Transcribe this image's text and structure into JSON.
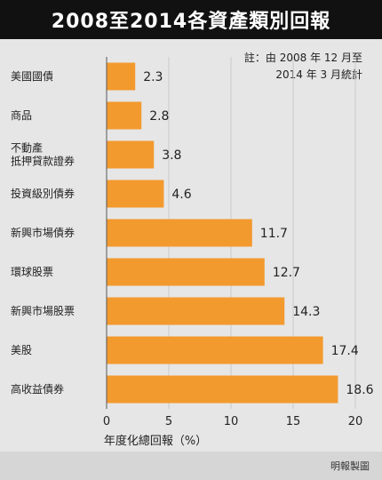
{
  "header": {
    "title": "2008至2014各資產類別回報"
  },
  "note": {
    "line1": "註：由 2008 年 12 月至",
    "line2": "2014 年 3 月統計"
  },
  "footer": {
    "credit": "明報製圖"
  },
  "colors": {
    "bar": "#f39a2e",
    "background": "#e6e6e6",
    "title_bar": "#111111"
  },
  "chart_data": {
    "type": "bar",
    "orientation": "horizontal",
    "categories": [
      [
        "美國國債"
      ],
      [
        "商品"
      ],
      [
        "不動產",
        "抵押貸款證券"
      ],
      [
        "投資級別債券"
      ],
      [
        "新興市場債券"
      ],
      [
        "環球股票"
      ],
      [
        "新興市場股票"
      ],
      [
        "美股"
      ],
      [
        "高收益債券"
      ]
    ],
    "values": [
      2.3,
      2.8,
      3.8,
      4.6,
      11.7,
      12.7,
      14.3,
      17.4,
      18.6
    ],
    "value_labels": [
      "2.3",
      "2.8",
      "3.8",
      "4.6",
      "11.7",
      "12.7",
      "14.3",
      "17.4",
      "18.6"
    ],
    "xlabel": "年度化總回報（%）",
    "xlim": [
      0,
      20
    ],
    "xticks": [
      0,
      5,
      10,
      15,
      20
    ],
    "grid": true,
    "legend": "none"
  }
}
